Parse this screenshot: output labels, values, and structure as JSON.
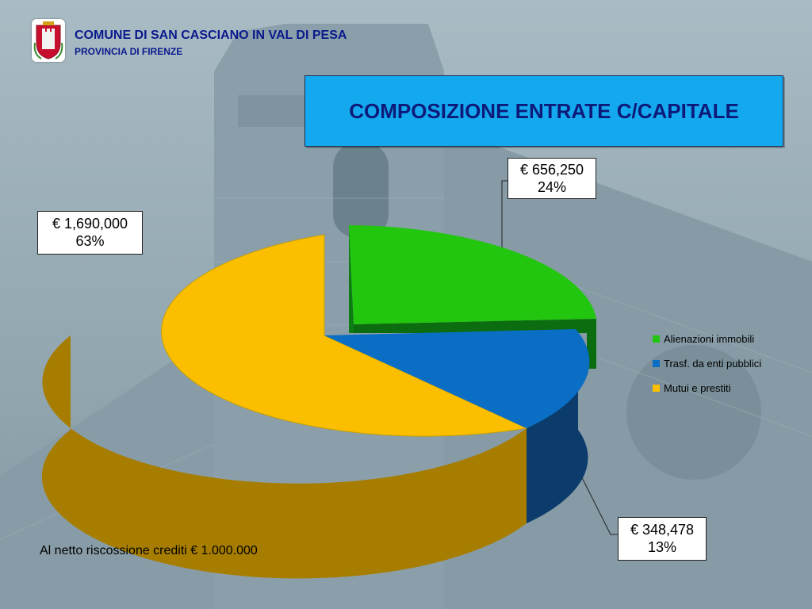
{
  "header": {
    "org_name": "COMUNE DI SAN CASCIANO IN VAL DI PESA",
    "org_sub": "PROVINCIA  DI FIRENZE",
    "logo_icon": "coat-of-arms-icon"
  },
  "chart_data": {
    "type": "pie",
    "title": "COMPOSIZIONE  ENTRATE  C/CAPITALE",
    "slices": [
      {
        "name": "Alienazioni immobili",
        "value": 656250,
        "value_label": "€ 656,250",
        "percent_label": "24%",
        "color": "#22c60e",
        "exploded": true
      },
      {
        "name": "Trasf. da enti pubblici",
        "value": 348478,
        "value_label": "€ 348,478",
        "percent_label": "13%",
        "color": "#0a6ec4"
      },
      {
        "name": "Mutui e prestiti",
        "value": 1690000,
        "value_label": "€ 1,690,000",
        "percent_label": "63%",
        "color": "#fbbf00"
      }
    ],
    "legend_position": "right"
  },
  "footnote": "Al netto riscossione crediti € 1.000.000"
}
